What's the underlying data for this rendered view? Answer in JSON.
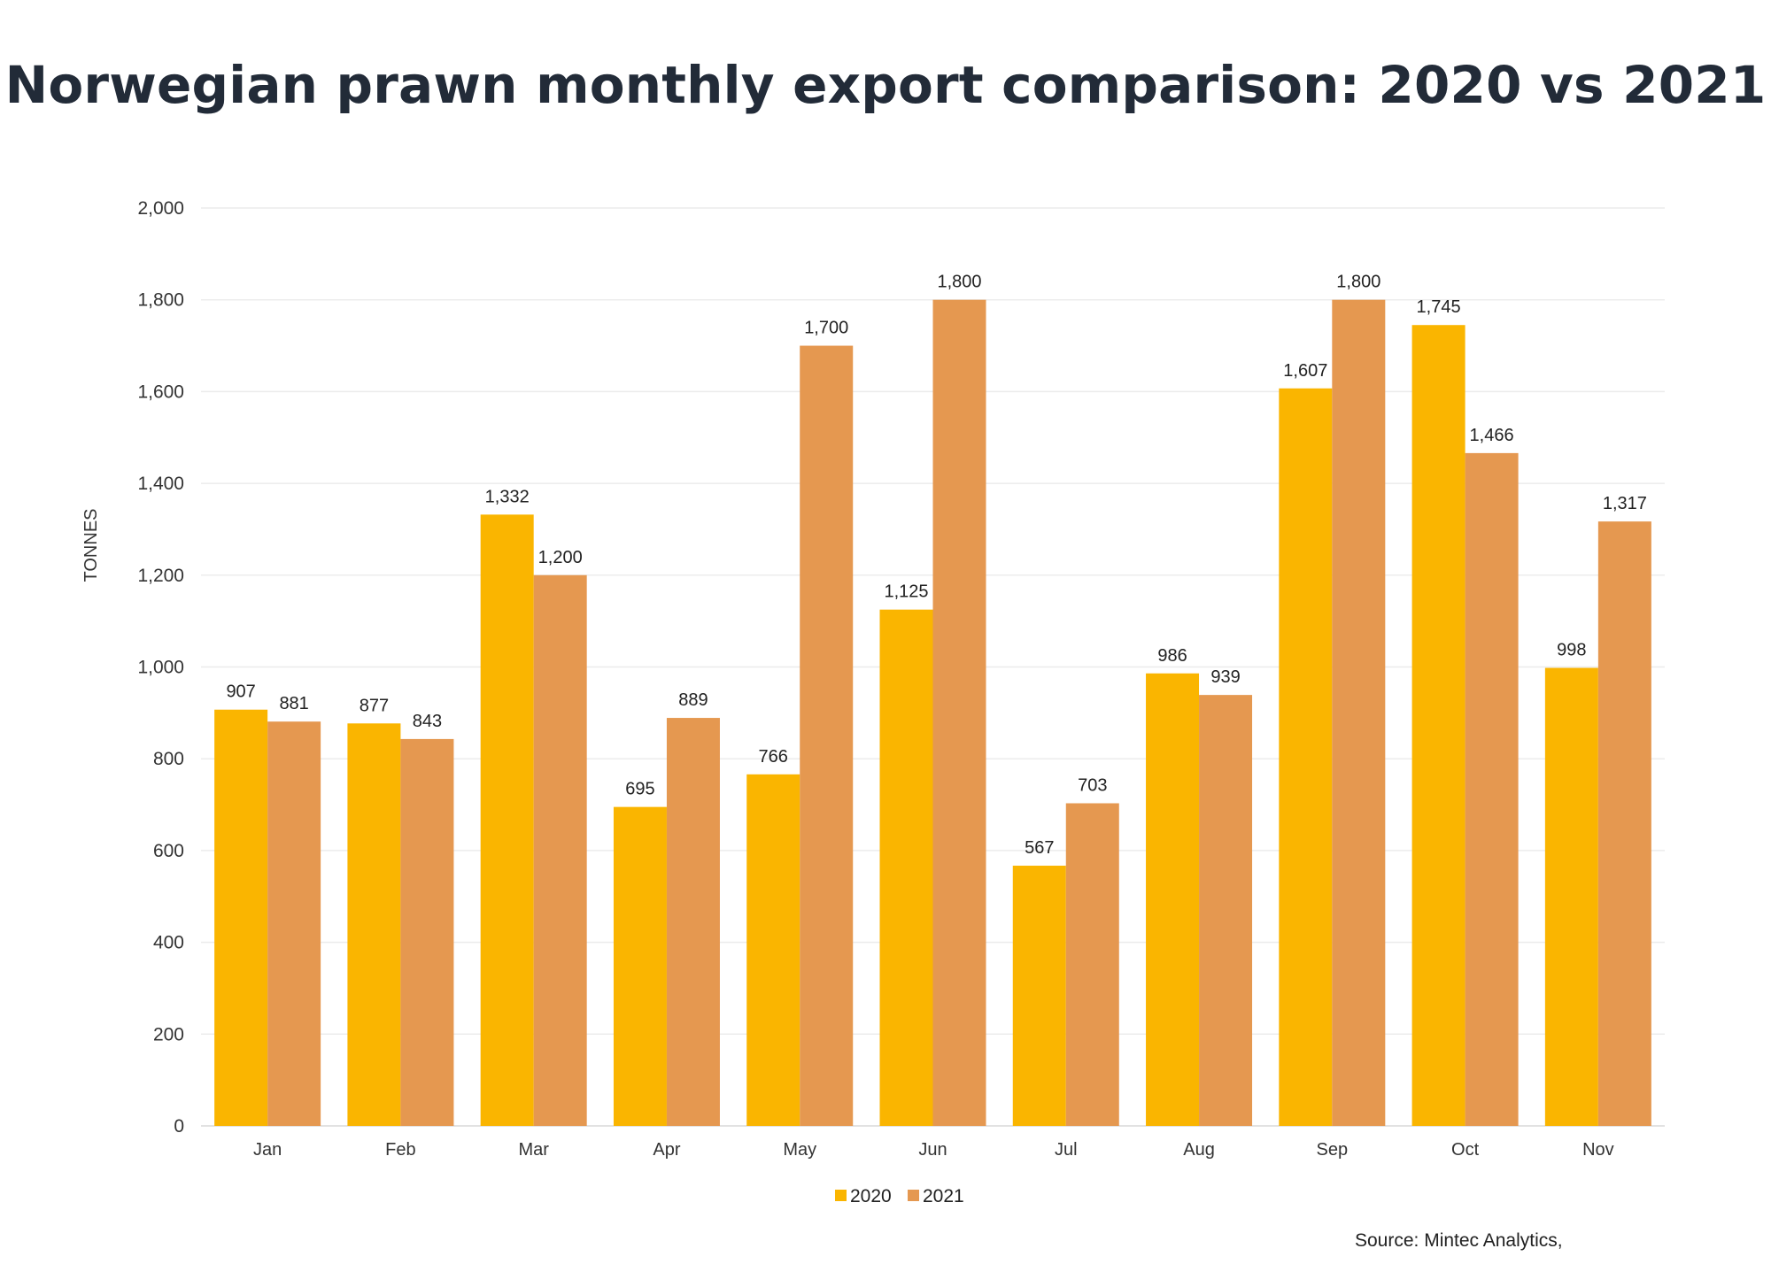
{
  "chart_data": {
    "type": "bar",
    "title": "Norwegian prawn monthly export comparison: 2020 vs 2021",
    "xlabel": "",
    "ylabel": "TONNES",
    "ylim": [
      0,
      2000
    ],
    "yticks": [
      0,
      200,
      400,
      600,
      800,
      1000,
      1200,
      1400,
      1600,
      1800,
      2000
    ],
    "ytick_labels": [
      "0",
      "200",
      "400",
      "600",
      "800",
      "1,000",
      "1,200",
      "1,400",
      "1,600",
      "1,800",
      "2,000"
    ],
    "categories": [
      "Jan",
      "Feb",
      "Mar",
      "Apr",
      "May",
      "Jun",
      "Jul",
      "Aug",
      "Sep",
      "Oct",
      "Nov"
    ],
    "series": [
      {
        "name": "2020",
        "color": "#FAB500",
        "values": [
          907,
          877,
          1332,
          695,
          766,
          1125,
          567,
          986,
          1607,
          1745,
          998
        ],
        "labels": [
          "907",
          "877",
          "1,332",
          "695",
          "766",
          "1,125",
          "567",
          "986",
          "1,607",
          "1,745",
          "998"
        ]
      },
      {
        "name": "2021",
        "color": "#E59850",
        "values": [
          881,
          843,
          1200,
          889,
          1700,
          1800,
          703,
          939,
          1800,
          1466,
          1317
        ],
        "labels": [
          "881",
          "843",
          "1,200",
          "889",
          "1,700",
          "1,800",
          "703",
          "939",
          "1,800",
          "1,466",
          "1,317"
        ]
      }
    ],
    "grid": true,
    "legend": "bottom-center"
  },
  "source": "Source: Mintec Analytics,"
}
